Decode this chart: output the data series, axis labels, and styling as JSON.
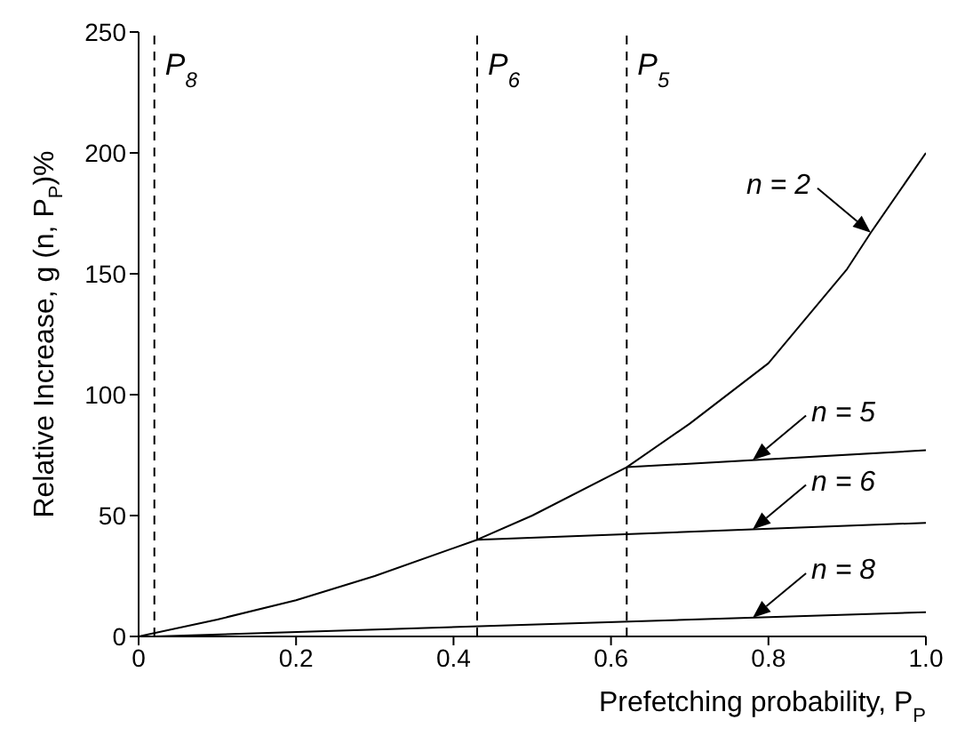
{
  "chart_data": {
    "type": "line",
    "xlabel": "Prefetching probability, P$_{P}$",
    "ylabel": "Relative Increase, g (n, P$_{P}$)%",
    "xlim": [
      0,
      1
    ],
    "ylim": [
      0,
      250
    ],
    "xticks": [
      0,
      0.2,
      0.4,
      0.6,
      0.8,
      {
        "value": 1,
        "label": "1.0"
      }
    ],
    "yticks": [
      0,
      50,
      100,
      150,
      200,
      250
    ],
    "grid": false,
    "legend": "right",
    "marker": "none",
    "line_style": "solid",
    "series": [
      {
        "name": "n = 2",
        "color": "#000000",
        "x": [
          0,
          0.1,
          0.2,
          0.3,
          0.43,
          0.5,
          0.62,
          0.7,
          0.8,
          0.9,
          0.93,
          1
        ],
        "values": [
          0,
          7,
          15,
          25,
          40,
          50,
          70,
          88,
          113,
          152,
          167,
          200
        ]
      },
      {
        "name": "n = 5",
        "color": "#000000",
        "x": [
          0.62,
          1
        ],
        "values": [
          70,
          77
        ]
      },
      {
        "name": "n = 6",
        "color": "#000000",
        "x": [
          0.43,
          1
        ],
        "values": [
          40,
          47
        ]
      },
      {
        "name": "n = 8",
        "color": "#000000",
        "x": [
          0.02,
          1
        ],
        "values": [
          0,
          10
        ]
      }
    ],
    "ref_lines": [
      {
        "axis": "x",
        "value": 0.02,
        "label": "P$_{8}$",
        "line_style": "dashed",
        "color": "#000000"
      },
      {
        "axis": "x",
        "value": 0.43,
        "label": "P$_{6}$",
        "line_style": "dashed",
        "color": "#000000"
      },
      {
        "axis": "x",
        "value": 0.62,
        "label": "P$_{5}$",
        "line_style": "dashed",
        "color": "#000000"
      }
    ]
  }
}
